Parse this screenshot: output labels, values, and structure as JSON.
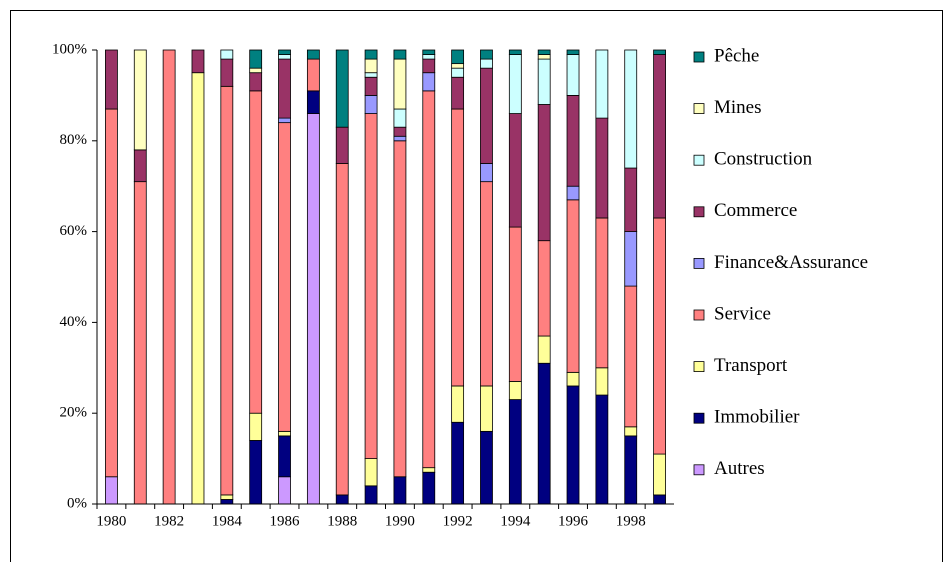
{
  "chart_data": {
    "type": "stacked_bar_percent",
    "categories": [
      "1980",
      null,
      "1982",
      null,
      "1984",
      null,
      "1986",
      null,
      "1988",
      null,
      "1990",
      null,
      "1992",
      null,
      "1994",
      null,
      "1996",
      null,
      "1998",
      null
    ],
    "ylim": [
      0,
      100
    ],
    "yticks": [
      {
        "value": 0,
        "label": "0%"
      },
      {
        "value": 20,
        "label": "20%"
      },
      {
        "value": 40,
        "label": "40%"
      },
      {
        "value": 60,
        "label": "60%"
      },
      {
        "value": 80,
        "label": "80%"
      },
      {
        "value": 100,
        "label": "100%"
      }
    ],
    "series": [
      {
        "name": "Autres",
        "color": "#cc99ff",
        "values": [
          6,
          0,
          0,
          0,
          0,
          0,
          6,
          86,
          0,
          0,
          0,
          0,
          0,
          0,
          0,
          0,
          0,
          0,
          0,
          0
        ]
      },
      {
        "name": "Immobilier",
        "color": "#000080",
        "values": [
          0,
          0,
          0,
          0,
          1,
          14,
          9,
          5,
          2,
          4,
          6,
          7,
          18,
          16,
          23,
          31,
          26,
          24,
          15,
          2
        ]
      },
      {
        "name": "Transport",
        "color": "#ffff99",
        "values": [
          0,
          0,
          0,
          95,
          1,
          6,
          1,
          0,
          0,
          6,
          0,
          1,
          8,
          10,
          4,
          6,
          3,
          6,
          2,
          9
        ]
      },
      {
        "name": "Service",
        "color": "#ff8080",
        "values": [
          81,
          71,
          100,
          0,
          90,
          71,
          68,
          7,
          73,
          76,
          74,
          83,
          61,
          45,
          34,
          21,
          38,
          33,
          31,
          52
        ]
      },
      {
        "name": "Finance&Assurance",
        "color": "#9999ff",
        "values": [
          0,
          0,
          0,
          0,
          0,
          0,
          1,
          0,
          0,
          4,
          1,
          4,
          0,
          4,
          0,
          0,
          3,
          0,
          12,
          0
        ]
      },
      {
        "name": "Commerce",
        "color": "#993366",
        "values": [
          13,
          7,
          0,
          5,
          6,
          4,
          13,
          0,
          8,
          4,
          2,
          3,
          7,
          21,
          25,
          30,
          20,
          22,
          14,
          36
        ]
      },
      {
        "name": "Construction",
        "color": "#ccffff",
        "values": [
          0,
          0,
          0,
          0,
          2,
          0,
          1,
          0,
          0,
          1,
          4,
          1,
          2,
          2,
          13,
          10,
          9,
          15,
          26,
          0
        ]
      },
      {
        "name": "Mines",
        "color": "#ffffc0",
        "values": [
          0,
          22,
          0,
          0,
          0,
          1,
          0,
          0,
          0,
          3,
          11,
          0,
          1,
          0,
          0,
          1,
          0,
          0,
          0,
          0
        ]
      },
      {
        "name": "Pêche",
        "color": "#008080",
        "values": [
          0,
          0,
          0,
          0,
          0,
          4,
          1,
          2,
          17,
          2,
          2,
          1,
          3,
          2,
          1,
          1,
          1,
          0,
          0,
          1
        ]
      }
    ]
  }
}
